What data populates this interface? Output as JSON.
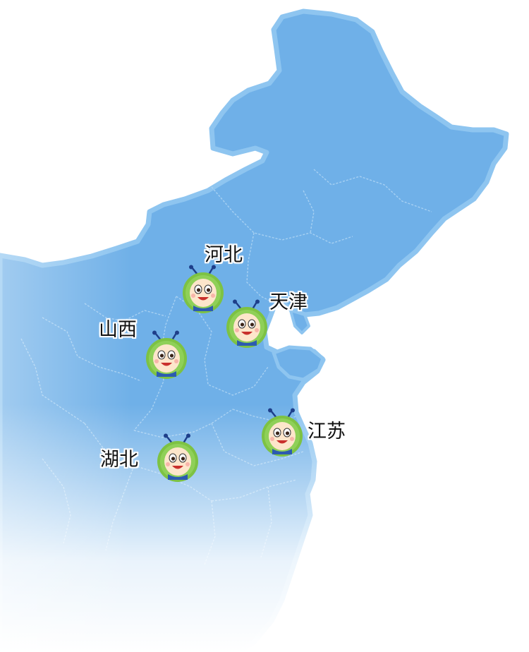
{
  "map": {
    "land_color": "#6fb0e8",
    "border_color": "#8ec5f0",
    "province_line_color": "#a9d2f3",
    "fade_color": "#ffffff"
  },
  "locations": [
    {
      "key": "hebei",
      "label": "河北",
      "icon": "cartoon-mascot-icon"
    },
    {
      "key": "tianjin",
      "label": "天津",
      "icon": "cartoon-mascot-icon"
    },
    {
      "key": "shanxi",
      "label": "山西",
      "icon": "cartoon-mascot-icon"
    },
    {
      "key": "jiangsu",
      "label": "江苏",
      "icon": "cartoon-mascot-icon"
    },
    {
      "key": "hubei",
      "label": "湖北",
      "icon": "cartoon-mascot-icon"
    }
  ]
}
